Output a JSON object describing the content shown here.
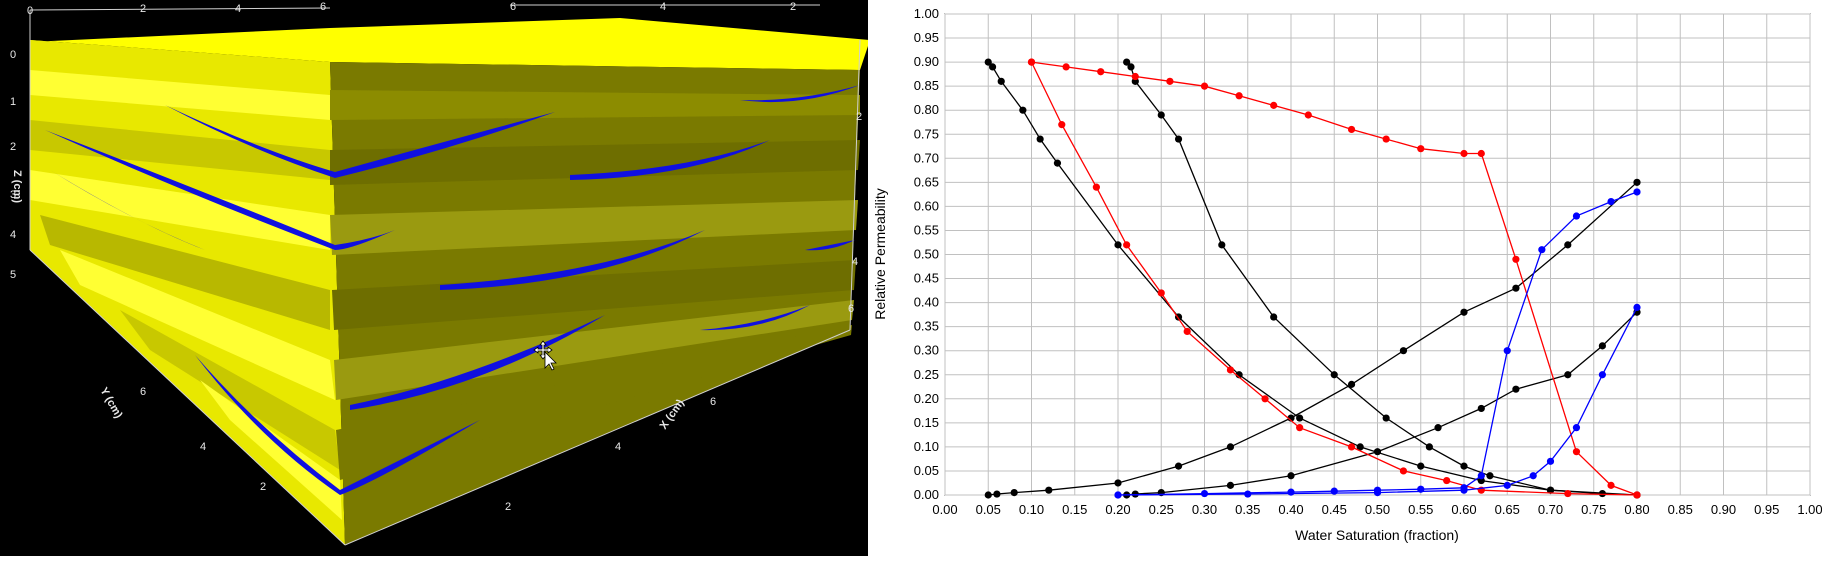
{
  "colors": {
    "background_3d": "#000000",
    "sand_light": "#ffff00",
    "sand_mid": "#e0e000",
    "sand_dark": "#808000",
    "shale": "#1010e0",
    "series_black": "#000000",
    "series_red": "#ff0000",
    "series_blue": "#0000ff",
    "grid": "#c0c0c0"
  },
  "model_3d": {
    "z_axis": {
      "label": "Z (cm)",
      "ticks": [
        "0",
        "1",
        "2",
        "3",
        "4",
        "5"
      ]
    },
    "y_axis": {
      "label": "Y (cm)",
      "ticks": [
        "2",
        "4",
        "6"
      ]
    },
    "x_axis": {
      "label": "X (cm)",
      "ticks": [
        "2",
        "4",
        "6"
      ]
    },
    "top_left_ticks": [
      "0",
      "2",
      "4",
      "6"
    ],
    "top_right_ticks": [
      "6",
      "4",
      "2"
    ],
    "right_ticks": [
      "6",
      "4",
      "2"
    ],
    "cursor_icon": "move-cursor-icon"
  },
  "chart_data": {
    "type": "line",
    "xlabel": "Water Saturation (fraction)",
    "ylabel": "Relative Permeability",
    "xlim": [
      0,
      1
    ],
    "ylim": [
      0,
      1
    ],
    "x_ticks": [
      "0.00",
      "0.05",
      "0.10",
      "0.15",
      "0.20",
      "0.25",
      "0.30",
      "0.35",
      "0.40",
      "0.45",
      "0.50",
      "0.55",
      "0.60",
      "0.65",
      "0.70",
      "0.75",
      "0.80",
      "0.85",
      "0.90",
      "0.95",
      "1.00"
    ],
    "y_ticks": [
      "0.00",
      "0.05",
      "0.10",
      "0.15",
      "0.20",
      "0.25",
      "0.30",
      "0.35",
      "0.40",
      "0.45",
      "0.50",
      "0.55",
      "0.60",
      "0.65",
      "0.70",
      "0.75",
      "0.80",
      "0.85",
      "0.90",
      "0.95",
      "1.00"
    ],
    "grid": true,
    "series": [
      {
        "color": "#000000",
        "x": [
          0.05,
          0.055,
          0.065,
          0.09,
          0.11,
          0.13,
          0.2,
          0.27,
          0.34,
          0.41,
          0.48,
          0.55,
          0.62,
          0.7,
          0.76,
          0.8
        ],
        "y": [
          0.9,
          0.89,
          0.86,
          0.8,
          0.74,
          0.69,
          0.52,
          0.37,
          0.25,
          0.16,
          0.1,
          0.06,
          0.03,
          0.01,
          0.003,
          0.0
        ]
      },
      {
        "color": "#000000",
        "x": [
          0.05,
          0.06,
          0.08,
          0.12,
          0.2,
          0.27,
          0.33,
          0.4,
          0.47,
          0.53,
          0.6,
          0.66,
          0.72,
          0.8
        ],
        "y": [
          0.0,
          0.002,
          0.005,
          0.01,
          0.025,
          0.06,
          0.1,
          0.16,
          0.23,
          0.3,
          0.38,
          0.43,
          0.52,
          0.65
        ]
      },
      {
        "color": "#000000",
        "x": [
          0.21,
          0.215,
          0.22,
          0.25,
          0.27,
          0.32,
          0.38,
          0.45,
          0.51,
          0.56,
          0.6,
          0.63,
          0.7,
          0.8
        ],
        "y": [
          0.9,
          0.89,
          0.86,
          0.79,
          0.74,
          0.52,
          0.37,
          0.25,
          0.16,
          0.1,
          0.06,
          0.04,
          0.01,
          0.0
        ]
      },
      {
        "color": "#000000",
        "x": [
          0.21,
          0.22,
          0.25,
          0.33,
          0.4,
          0.5,
          0.57,
          0.62,
          0.66,
          0.72,
          0.76,
          0.8
        ],
        "y": [
          0.0,
          0.002,
          0.005,
          0.02,
          0.04,
          0.09,
          0.14,
          0.18,
          0.22,
          0.25,
          0.31,
          0.38
        ]
      },
      {
        "color": "#ff0000",
        "x": [
          0.1,
          0.135,
          0.175,
          0.21,
          0.25,
          0.28,
          0.33,
          0.37,
          0.41,
          0.47,
          0.53,
          0.58,
          0.62,
          0.72,
          0.8
        ],
        "y": [
          0.9,
          0.77,
          0.64,
          0.52,
          0.42,
          0.34,
          0.26,
          0.2,
          0.14,
          0.1,
          0.05,
          0.03,
          0.01,
          0.003,
          0.0
        ]
      },
      {
        "color": "#ff0000",
        "x": [
          0.1,
          0.14,
          0.18,
          0.22,
          0.26,
          0.3,
          0.34,
          0.38,
          0.42,
          0.47,
          0.51,
          0.55,
          0.6,
          0.62,
          0.66,
          0.73,
          0.77,
          0.8
        ],
        "y": [
          0.9,
          0.89,
          0.88,
          0.87,
          0.86,
          0.85,
          0.83,
          0.81,
          0.79,
          0.76,
          0.74,
          0.72,
          0.71,
          0.71,
          0.49,
          0.09,
          0.02,
          0.0
        ]
      },
      {
        "color": "#0000ff",
        "x": [
          0.2,
          0.3,
          0.4,
          0.45,
          0.5,
          0.55,
          0.6,
          0.62,
          0.65,
          0.69,
          0.73,
          0.77,
          0.8
        ],
        "y": [
          0.0,
          0.003,
          0.006,
          0.008,
          0.01,
          0.012,
          0.015,
          0.04,
          0.3,
          0.51,
          0.58,
          0.61,
          0.63
        ]
      },
      {
        "color": "#0000ff",
        "x": [
          0.2,
          0.35,
          0.5,
          0.6,
          0.65,
          0.68,
          0.7,
          0.73,
          0.76,
          0.8
        ],
        "y": [
          0.0,
          0.002,
          0.005,
          0.01,
          0.02,
          0.04,
          0.07,
          0.14,
          0.25,
          0.39
        ]
      }
    ]
  }
}
